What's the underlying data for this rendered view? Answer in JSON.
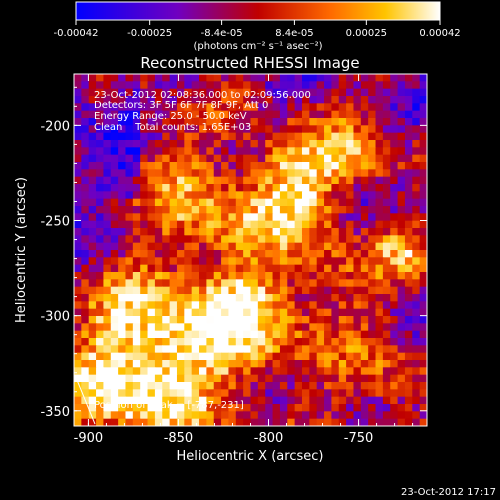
{
  "chart_data": {
    "type": "heatmap",
    "title": "Reconstructed RHESSI Image",
    "xlabel": "Heliocentric X (arcsec)",
    "ylabel": "Heliocentric Y (arcsec)",
    "xlim": [
      -908,
      -712
    ],
    "ylim": [
      -358,
      -173
    ],
    "xticks": [
      "-900",
      "-850",
      "-800",
      "-750"
    ],
    "yticks": [
      "-200",
      "-250",
      "-300",
      "-350"
    ],
    "colorbar": {
      "min": -0.00042,
      "max": 0.00042,
      "ticks": [
        "-0.00042",
        "-0.00025",
        "-8.4e-05",
        "8.4e-05",
        "0.00025",
        "0.00042"
      ],
      "units": "(photons cm⁻² s⁻¹ asec⁻²)",
      "colormap": [
        "#0000ff",
        "#7000c0",
        "#c00000",
        "#ff6a00",
        "#ffc400",
        "#ffffff"
      ]
    },
    "annotations": [
      "23-Oct-2012 02:08:36.000 to 02:09:56.000",
      "Detectors: 3F 5F 6F 7F 8F 9F, Att 0",
      "Energy Range: 25.0 - 50.0 keV",
      "Clean    Total counts: 1.65E+03"
    ],
    "peak_label": "Position of Peak = [-787,-231]",
    "peak": [
      -787,
      -231
    ]
  },
  "timestamp": "23-Oct-2012 17:17"
}
